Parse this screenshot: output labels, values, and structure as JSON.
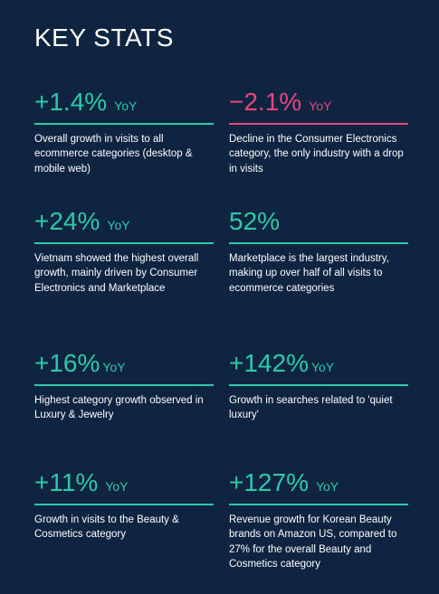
{
  "title": "KEY STATS",
  "colors": {
    "background": "#0e2440",
    "positive": "#2ec9a7",
    "negative": "#e8457f",
    "text": "#ffffff"
  },
  "stats": [
    {
      "value": "+1.4%",
      "unit": "YoY",
      "description": "Overall growth in visits to all ecommerce categories (desktop & mobile web)"
    },
    {
      "value": "−2.1%",
      "unit": "YoY",
      "description": "Decline in the Consumer Electronics category, the only industry with a drop in visits"
    },
    {
      "value": "+24%",
      "unit": "YoY",
      "description": "Vietnam showed the highest overall growth, mainly driven by Consumer Electronics and Marketplace"
    },
    {
      "value": "52%",
      "unit": "",
      "description": "Marketplace is the largest industry, making up over half of all visits to ecommerce categories"
    },
    {
      "value": "+16%",
      "unit": "YoY",
      "description": "Highest category growth observed in Luxury & Jewelry"
    },
    {
      "value": "+142%",
      "unit": "YoY",
      "description": "Growth in searches related to 'quiet luxury'"
    },
    {
      "value": "+11%",
      "unit": "YoY",
      "description": "Growth in visits to the Beauty & Cosmetics category"
    },
    {
      "value": "+127%",
      "unit": "YoY",
      "description": "Revenue growth for Korean Beauty brands on Amazon US, compared to 27% for the overall Beauty and Cosmetics category"
    }
  ]
}
